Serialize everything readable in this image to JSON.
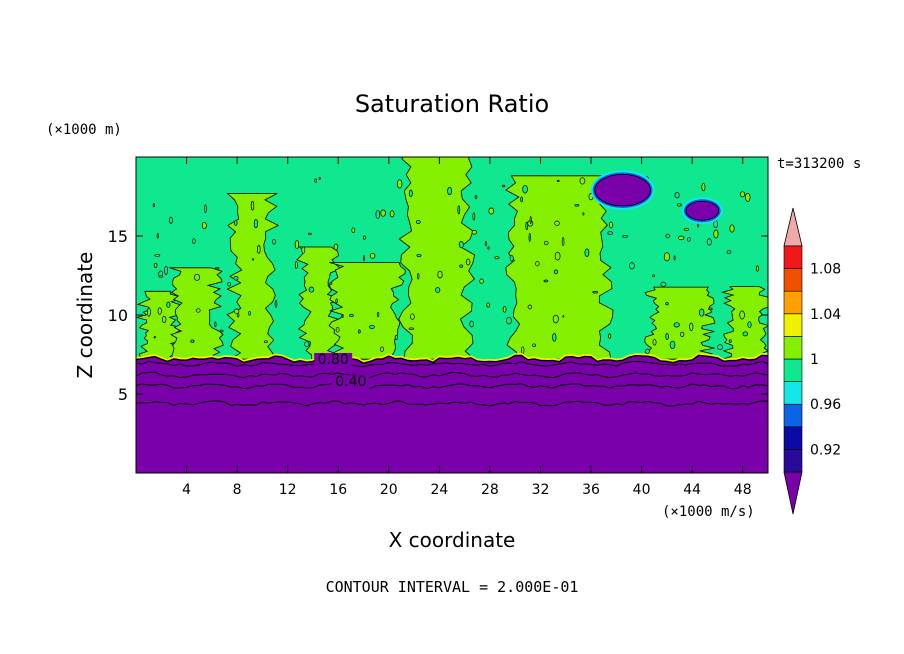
{
  "chart_data": {
    "type": "heatmap",
    "title": "Saturation Ratio",
    "xlabel": "X coordinate",
    "ylabel": "Z coordinate",
    "x_unit_label": "(×1000 m/s)",
    "y_unit_label": "(×1000 m)",
    "time_label": "t=313200 s",
    "footer": "CONTOUR INTERVAL = 2.000E-01",
    "xlim": [
      0,
      50
    ],
    "ylim": [
      0,
      20
    ],
    "x_ticks": [
      4,
      8,
      12,
      16,
      20,
      24,
      28,
      32,
      36,
      40,
      44,
      48
    ],
    "y_ticks": [
      5,
      10,
      15
    ],
    "contour_labels": [
      {
        "text": "0.80",
        "x": 15.6,
        "z": 6.9
      },
      {
        "text": "0.40",
        "x": 17.0,
        "z": 5.5
      }
    ],
    "colorbar": {
      "colors": [
        "#7a00aa",
        "#2a0a9a",
        "#0a0aa8",
        "#0a64e6",
        "#12e8e8",
        "#10e890",
        "#84f000",
        "#f0f000",
        "#ffa000",
        "#f05000",
        "#f01818",
        "#f0a8a8"
      ],
      "tick_labels": [
        "0.92",
        "0.96",
        "1",
        "1.04",
        "1.08"
      ]
    },
    "inversion_height": 7.2
  }
}
